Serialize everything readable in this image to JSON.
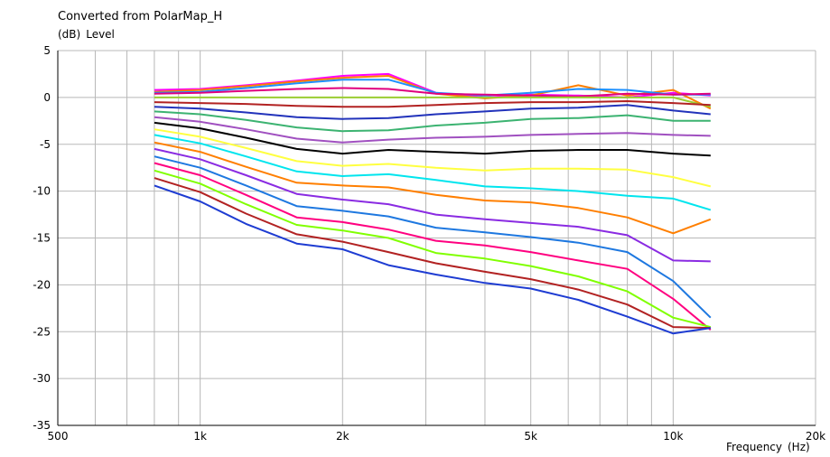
{
  "chart_data": {
    "type": "line",
    "title": "Converted from PolarMap_H",
    "ylabel": "(dB)",
    "ylabel_name": "Level",
    "xlabel": "Frequency",
    "xlabel_unit": "(Hz)",
    "x_scale": "log",
    "xlim": [
      500,
      20000
    ],
    "ylim": [
      -35,
      5
    ],
    "grid": true,
    "legend": "none",
    "y_ticks": [
      5,
      0,
      -5,
      -10,
      -15,
      -20,
      -25,
      -30,
      -35
    ],
    "y_tick_labels": [
      "5",
      "0",
      "-5",
      "-10",
      "-15",
      "-20",
      "-25",
      "-30",
      "-35"
    ],
    "x_ticks": [
      500,
      1000,
      2000,
      5000,
      10000,
      20000
    ],
    "x_tick_labels": [
      "500",
      "1k",
      "2k",
      "5k",
      "10k",
      "20k"
    ],
    "x": [
      800,
      1000,
      1250,
      1600,
      2000,
      2500,
      3150,
      4000,
      5000,
      6300,
      8000,
      10000,
      12000
    ],
    "series": [
      {
        "color": "#ff00ff",
        "values": [
          0.8,
          0.9,
          1.3,
          1.8,
          2.3,
          2.5,
          0.5,
          0.0,
          0.3,
          0.2,
          0.0,
          0.5,
          0.2
        ]
      },
      {
        "color": "#ff7f00",
        "values": [
          0.6,
          0.8,
          1.2,
          1.7,
          2.1,
          2.3,
          0.4,
          -0.1,
          0.2,
          1.3,
          0.2,
          0.8,
          -1.2
        ]
      },
      {
        "color": "#1e90ff",
        "values": [
          0.5,
          0.6,
          1.0,
          1.5,
          1.9,
          1.9,
          0.5,
          0.2,
          0.5,
          0.9,
          0.8,
          0.3,
          0.3
        ]
      },
      {
        "color": "#e0007f",
        "values": [
          0.4,
          0.5,
          0.7,
          0.9,
          1.0,
          0.9,
          0.4,
          0.3,
          0.2,
          0.1,
          0.4,
          0.3,
          0.4
        ]
      },
      {
        "color": "#9acd32",
        "values": [
          0.0,
          0.0,
          0.0,
          0.0,
          0.0,
          0.0,
          0.0,
          0.0,
          0.0,
          0.0,
          0.0,
          0.0,
          -1.0
        ]
      },
      {
        "color": "#b22222",
        "values": [
          -0.5,
          -0.6,
          -0.7,
          -0.9,
          -1.0,
          -1.0,
          -0.8,
          -0.6,
          -0.5,
          -0.5,
          -0.4,
          -0.6,
          -0.8
        ]
      },
      {
        "color": "#2233bb",
        "values": [
          -1.0,
          -1.2,
          -1.6,
          -2.1,
          -2.3,
          -2.2,
          -1.8,
          -1.5,
          -1.2,
          -1.1,
          -0.8,
          -1.4,
          -1.8
        ]
      },
      {
        "color": "#3cb371",
        "values": [
          -1.5,
          -1.8,
          -2.4,
          -3.2,
          -3.6,
          -3.5,
          -3.0,
          -2.7,
          -2.3,
          -2.2,
          -1.9,
          -2.5,
          -2.5
        ]
      },
      {
        "color": "#a050c0",
        "values": [
          -2.1,
          -2.6,
          -3.4,
          -4.4,
          -4.8,
          -4.5,
          -4.3,
          -4.2,
          -4.0,
          -3.9,
          -3.8,
          -4.0,
          -4.1
        ]
      },
      {
        "color": "#000000",
        "values": [
          -2.7,
          -3.3,
          -4.3,
          -5.5,
          -6.0,
          -5.6,
          -5.8,
          -6.0,
          -5.7,
          -5.6,
          -5.6,
          -6.0,
          -6.2
        ]
      },
      {
        "color": "#ffff40",
        "values": [
          -3.4,
          -4.2,
          -5.4,
          -6.8,
          -7.3,
          -7.1,
          -7.5,
          -7.8,
          -7.6,
          -7.6,
          -7.7,
          -8.5,
          -9.5
        ]
      },
      {
        "color": "#00e5ee",
        "values": [
          -4.0,
          -4.9,
          -6.3,
          -7.9,
          -8.4,
          -8.2,
          -8.8,
          -9.5,
          -9.7,
          -10.0,
          -10.5,
          -10.8,
          -12.0
        ]
      },
      {
        "color": "#ff7f00",
        "values": [
          -4.8,
          -5.8,
          -7.4,
          -9.1,
          -9.4,
          -9.6,
          -10.4,
          -11.0,
          -11.2,
          -11.8,
          -12.8,
          -14.5,
          -13.0
        ]
      },
      {
        "color": "#8a2be2",
        "values": [
          -5.5,
          -6.6,
          -8.3,
          -10.3,
          -10.9,
          -11.4,
          -12.5,
          -13.0,
          -13.4,
          -13.8,
          -14.7,
          -17.4,
          -17.5
        ]
      },
      {
        "color": "#1e78e0",
        "values": [
          -6.3,
          -7.5,
          -9.4,
          -11.6,
          -12.1,
          -12.7,
          -13.9,
          -14.4,
          -14.9,
          -15.5,
          -16.5,
          -19.6,
          -23.5
        ]
      },
      {
        "color": "#ff0080",
        "values": [
          -7.0,
          -8.3,
          -10.4,
          -12.8,
          -13.3,
          -14.1,
          -15.3,
          -15.8,
          -16.5,
          -17.4,
          -18.3,
          -21.5,
          -24.8
        ]
      },
      {
        "color": "#80ff00",
        "values": [
          -7.8,
          -9.2,
          -11.4,
          -13.6,
          -14.2,
          -15.0,
          -16.6,
          -17.2,
          -18.0,
          -19.1,
          -20.7,
          -23.5,
          -24.5
        ]
      },
      {
        "color": "#b22222",
        "values": [
          -8.6,
          -10.1,
          -12.4,
          -14.6,
          -15.4,
          -16.5,
          -17.7,
          -18.6,
          -19.4,
          -20.5,
          -22.1,
          -24.5,
          -24.6
        ]
      },
      {
        "color": "#1e3cd2",
        "values": [
          -9.4,
          -11.1,
          -13.5,
          -15.6,
          -16.2,
          -17.9,
          -18.9,
          -19.8,
          -20.4,
          -21.6,
          -23.4,
          -25.2,
          -24.6
        ]
      }
    ]
  }
}
